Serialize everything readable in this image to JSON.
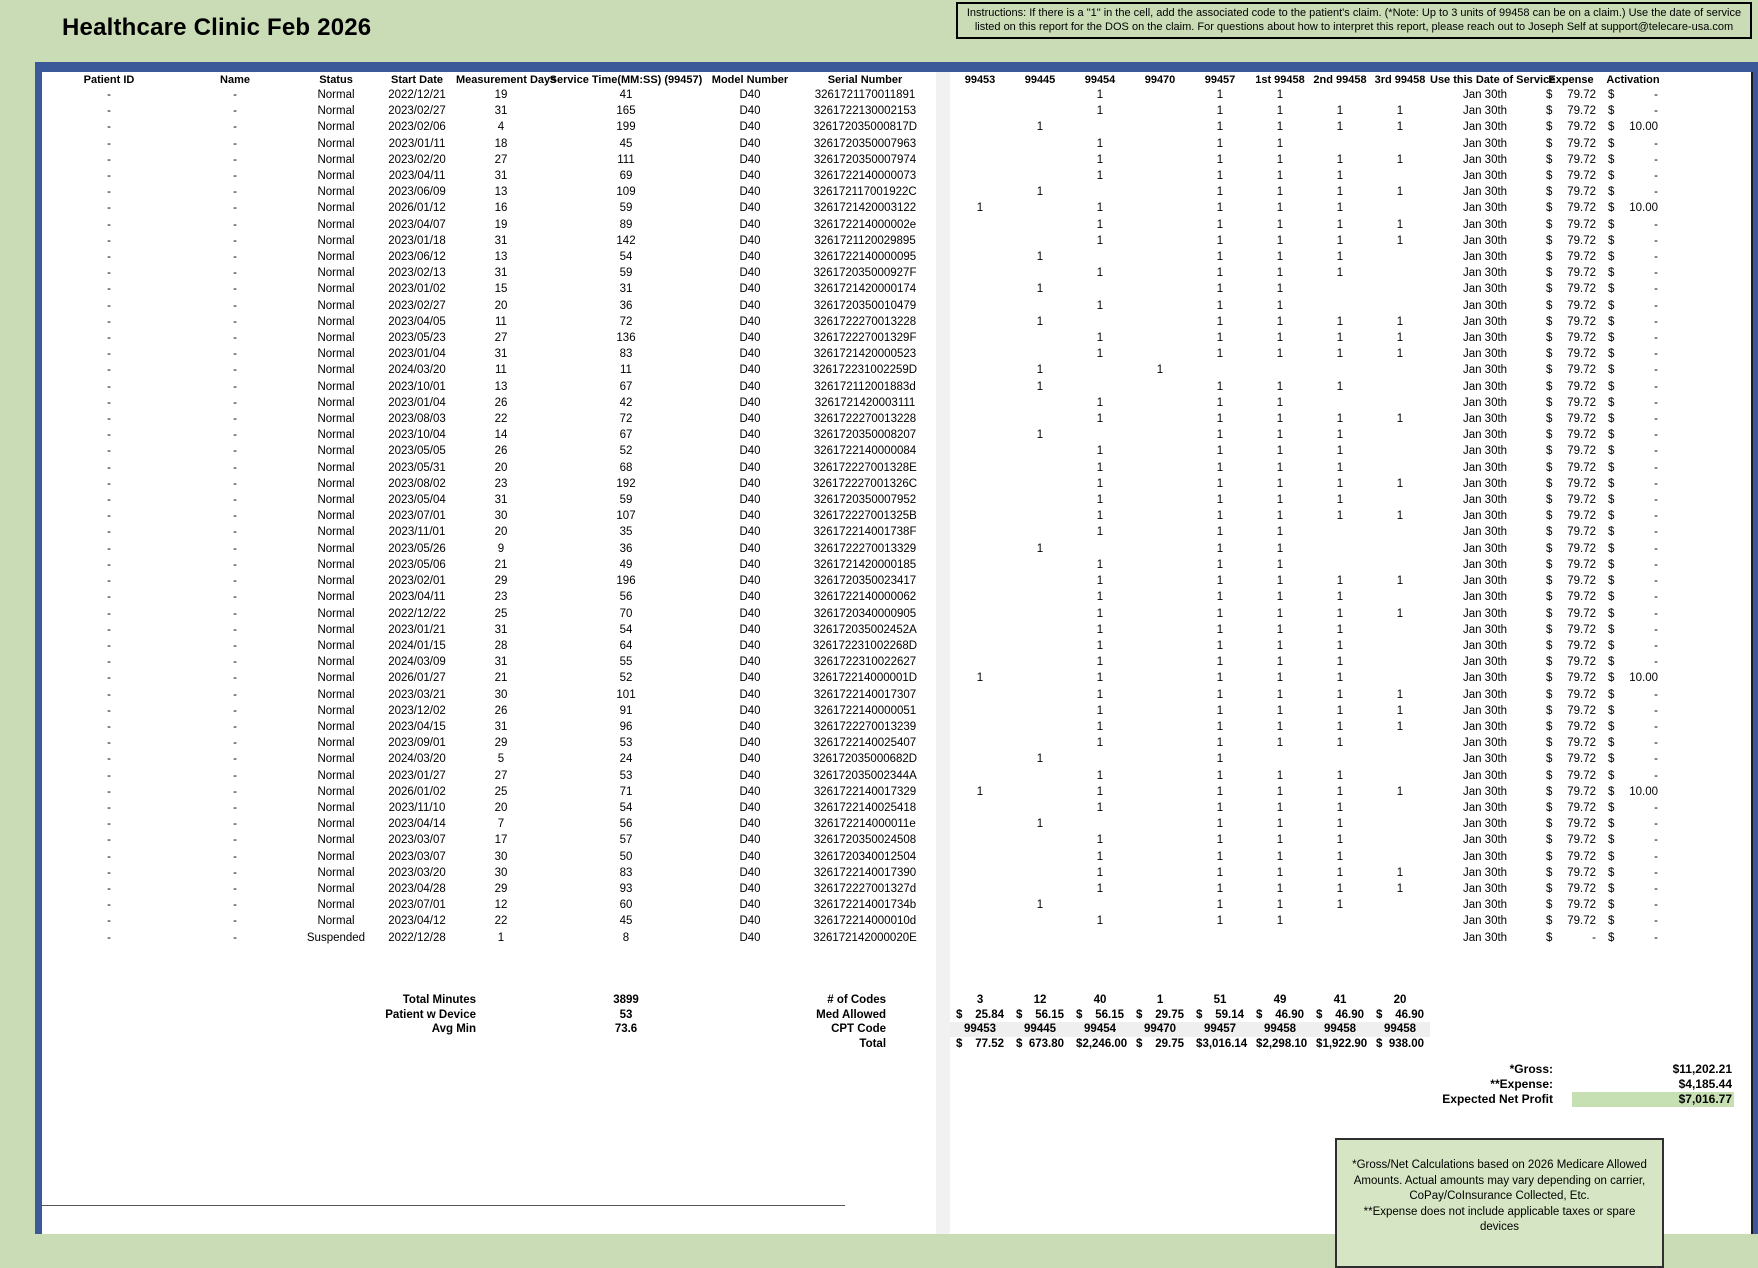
{
  "page": {
    "title": "Healthcare Clinic Feb 2026",
    "instructions": "Instructions: If there is a \"1\" in the cell, add the associated code to the patient's claim. (*Note: Up to 3 units of 99458 can be on a claim.) Use the date of service listed on this report for the DOS on the claim. For questions about how to interpret this report, please reach out to Joseph Self at support@telecare-usa.com"
  },
  "table": {
    "columns": [
      "Patient ID",
      "Name",
      "Status",
      "Start Date",
      "Measurement Days",
      "Service Time(MM:SS) (99457)",
      "Model Number",
      "Serial Number",
      "99453",
      "99445",
      "99454",
      "99470",
      "99457",
      "1st 99458",
      "2nd 99458",
      "3rd 99458",
      "Use this Date of Service",
      "Expense",
      "Activation"
    ],
    "rows": [
      [
        "-",
        "-",
        "Normal",
        "2022/12/21",
        "19",
        "41",
        "D40",
        "3261721170011891",
        "",
        "",
        "1",
        "",
        "1",
        "1",
        "",
        "",
        "Jan 30th",
        "79.72",
        "-"
      ],
      [
        "-",
        "-",
        "Normal",
        "2023/02/27",
        "31",
        "165",
        "D40",
        "3261722130002153",
        "",
        "",
        "1",
        "",
        "1",
        "1",
        "1",
        "1",
        "Jan 30th",
        "79.72",
        "-"
      ],
      [
        "-",
        "-",
        "Normal",
        "2023/02/06",
        "4",
        "199",
        "D40",
        "326172035000817D",
        "",
        "1",
        "",
        "",
        "1",
        "1",
        "1",
        "1",
        "Jan 30th",
        "79.72",
        "10.00"
      ],
      [
        "-",
        "-",
        "Normal",
        "2023/01/11",
        "18",
        "45",
        "D40",
        "3261720350007963",
        "",
        "",
        "1",
        "",
        "1",
        "1",
        "",
        "",
        "Jan 30th",
        "79.72",
        "-"
      ],
      [
        "-",
        "-",
        "Normal",
        "2023/02/20",
        "27",
        "111",
        "D40",
        "3261720350007974",
        "",
        "",
        "1",
        "",
        "1",
        "1",
        "1",
        "1",
        "Jan 30th",
        "79.72",
        "-"
      ],
      [
        "-",
        "-",
        "Normal",
        "2023/04/11",
        "31",
        "69",
        "D40",
        "3261722140000073",
        "",
        "",
        "1",
        "",
        "1",
        "1",
        "1",
        "",
        "Jan 30th",
        "79.72",
        "-"
      ],
      [
        "-",
        "-",
        "Normal",
        "2023/06/09",
        "13",
        "109",
        "D40",
        "326172117001922C",
        "",
        "1",
        "",
        "",
        "1",
        "1",
        "1",
        "1",
        "Jan 30th",
        "79.72",
        "-"
      ],
      [
        "-",
        "-",
        "Normal",
        "2026/01/12",
        "16",
        "59",
        "D40",
        "3261721420003122",
        "1",
        "",
        "1",
        "",
        "1",
        "1",
        "1",
        "",
        "Jan 30th",
        "79.72",
        "10.00"
      ],
      [
        "-",
        "-",
        "Normal",
        "2023/04/07",
        "19",
        "89",
        "D40",
        "326172214000002e",
        "",
        "",
        "1",
        "",
        "1",
        "1",
        "1",
        "1",
        "Jan 30th",
        "79.72",
        "-"
      ],
      [
        "-",
        "-",
        "Normal",
        "2023/01/18",
        "31",
        "142",
        "D40",
        "3261721120029895",
        "",
        "",
        "1",
        "",
        "1",
        "1",
        "1",
        "1",
        "Jan 30th",
        "79.72",
        "-"
      ],
      [
        "-",
        "-",
        "Normal",
        "2023/06/12",
        "13",
        "54",
        "D40",
        "3261722140000095",
        "",
        "1",
        "",
        "",
        "1",
        "1",
        "1",
        "",
        "Jan 30th",
        "79.72",
        "-"
      ],
      [
        "-",
        "-",
        "Normal",
        "2023/02/13",
        "31",
        "59",
        "D40",
        "326172035000927F",
        "",
        "",
        "1",
        "",
        "1",
        "1",
        "1",
        "",
        "Jan 30th",
        "79.72",
        "-"
      ],
      [
        "-",
        "-",
        "Normal",
        "2023/01/02",
        "15",
        "31",
        "D40",
        "3261721420000174",
        "",
        "1",
        "",
        "",
        "1",
        "1",
        "",
        "",
        "Jan 30th",
        "79.72",
        "-"
      ],
      [
        "-",
        "-",
        "Normal",
        "2023/02/27",
        "20",
        "36",
        "D40",
        "3261720350010479",
        "",
        "",
        "1",
        "",
        "1",
        "1",
        "",
        "",
        "Jan 30th",
        "79.72",
        "-"
      ],
      [
        "-",
        "-",
        "Normal",
        "2023/04/05",
        "11",
        "72",
        "D40",
        "3261722270013228",
        "",
        "1",
        "",
        "",
        "1",
        "1",
        "1",
        "1",
        "Jan 30th",
        "79.72",
        "-"
      ],
      [
        "-",
        "-",
        "Normal",
        "2023/05/23",
        "27",
        "136",
        "D40",
        "326172227001329F",
        "",
        "",
        "1",
        "",
        "1",
        "1",
        "1",
        "1",
        "Jan 30th",
        "79.72",
        "-"
      ],
      [
        "-",
        "-",
        "Normal",
        "2023/01/04",
        "31",
        "83",
        "D40",
        "3261721420000523",
        "",
        "",
        "1",
        "",
        "1",
        "1",
        "1",
        "1",
        "Jan 30th",
        "79.72",
        "-"
      ],
      [
        "-",
        "-",
        "Normal",
        "2024/03/20",
        "11",
        "11",
        "D40",
        "326172231002259D",
        "",
        "1",
        "",
        "1",
        "",
        "",
        "",
        "",
        "Jan 30th",
        "79.72",
        "-"
      ],
      [
        "-",
        "-",
        "Normal",
        "2023/10/01",
        "13",
        "67",
        "D40",
        "326172112001883d",
        "",
        "1",
        "",
        "",
        "1",
        "1",
        "1",
        "",
        "Jan 30th",
        "79.72",
        "-"
      ],
      [
        "-",
        "-",
        "Normal",
        "2023/01/04",
        "26",
        "42",
        "D40",
        "3261721420003111",
        "",
        "",
        "1",
        "",
        "1",
        "1",
        "",
        "",
        "Jan 30th",
        "79.72",
        "-"
      ],
      [
        "-",
        "-",
        "Normal",
        "2023/08/03",
        "22",
        "72",
        "D40",
        "3261722270013228",
        "",
        "",
        "1",
        "",
        "1",
        "1",
        "1",
        "1",
        "Jan 30th",
        "79.72",
        "-"
      ],
      [
        "-",
        "-",
        "Normal",
        "2023/10/04",
        "14",
        "67",
        "D40",
        "3261720350008207",
        "",
        "1",
        "",
        "",
        "1",
        "1",
        "1",
        "",
        "Jan 30th",
        "79.72",
        "-"
      ],
      [
        "-",
        "-",
        "Normal",
        "2023/05/05",
        "26",
        "52",
        "D40",
        "3261722140000084",
        "",
        "",
        "1",
        "",
        "1",
        "1",
        "1",
        "",
        "Jan 30th",
        "79.72",
        "-"
      ],
      [
        "-",
        "-",
        "Normal",
        "2023/05/31",
        "20",
        "68",
        "D40",
        "326172227001328E",
        "",
        "",
        "1",
        "",
        "1",
        "1",
        "1",
        "",
        "Jan 30th",
        "79.72",
        "-"
      ],
      [
        "-",
        "-",
        "Normal",
        "2023/08/02",
        "23",
        "192",
        "D40",
        "326172227001326C",
        "",
        "",
        "1",
        "",
        "1",
        "1",
        "1",
        "1",
        "Jan 30th",
        "79.72",
        "-"
      ],
      [
        "-",
        "-",
        "Normal",
        "2023/05/04",
        "31",
        "59",
        "D40",
        "3261720350007952",
        "",
        "",
        "1",
        "",
        "1",
        "1",
        "1",
        "",
        "Jan 30th",
        "79.72",
        "-"
      ],
      [
        "-",
        "-",
        "Normal",
        "2023/07/01",
        "30",
        "107",
        "D40",
        "326172227001325B",
        "",
        "",
        "1",
        "",
        "1",
        "1",
        "1",
        "1",
        "Jan 30th",
        "79.72",
        "-"
      ],
      [
        "-",
        "-",
        "Normal",
        "2023/11/01",
        "20",
        "35",
        "D40",
        "326172214001738F",
        "",
        "",
        "1",
        "",
        "1",
        "1",
        "",
        "",
        "Jan 30th",
        "79.72",
        "-"
      ],
      [
        "-",
        "-",
        "Normal",
        "2023/05/26",
        "9",
        "36",
        "D40",
        "3261722270013329",
        "",
        "1",
        "",
        "",
        "1",
        "1",
        "",
        "",
        "Jan 30th",
        "79.72",
        "-"
      ],
      [
        "-",
        "-",
        "Normal",
        "2023/05/06",
        "21",
        "49",
        "D40",
        "3261721420000185",
        "",
        "",
        "1",
        "",
        "1",
        "1",
        "",
        "",
        "Jan 30th",
        "79.72",
        "-"
      ],
      [
        "-",
        "-",
        "Normal",
        "2023/02/01",
        "29",
        "196",
        "D40",
        "3261720350023417",
        "",
        "",
        "1",
        "",
        "1",
        "1",
        "1",
        "1",
        "Jan 30th",
        "79.72",
        "-"
      ],
      [
        "-",
        "-",
        "Normal",
        "2023/04/11",
        "23",
        "56",
        "D40",
        "3261722140000062",
        "",
        "",
        "1",
        "",
        "1",
        "1",
        "1",
        "",
        "Jan 30th",
        "79.72",
        "-"
      ],
      [
        "-",
        "-",
        "Normal",
        "2022/12/22",
        "25",
        "70",
        "D40",
        "3261720340000905",
        "",
        "",
        "1",
        "",
        "1",
        "1",
        "1",
        "1",
        "Jan 30th",
        "79.72",
        "-"
      ],
      [
        "-",
        "-",
        "Normal",
        "2023/01/21",
        "31",
        "54",
        "D40",
        "326172035002452A",
        "",
        "",
        "1",
        "",
        "1",
        "1",
        "1",
        "",
        "Jan 30th",
        "79.72",
        "-"
      ],
      [
        "-",
        "-",
        "Normal",
        "2024/01/15",
        "28",
        "64",
        "D40",
        "326172231002268D",
        "",
        "",
        "1",
        "",
        "1",
        "1",
        "1",
        "",
        "Jan 30th",
        "79.72",
        "-"
      ],
      [
        "-",
        "-",
        "Normal",
        "2024/03/09",
        "31",
        "55",
        "D40",
        "3261722310022627",
        "",
        "",
        "1",
        "",
        "1",
        "1",
        "1",
        "",
        "Jan 30th",
        "79.72",
        "-"
      ],
      [
        "-",
        "-",
        "Normal",
        "2026/01/27",
        "21",
        "52",
        "D40",
        "326172214000001D",
        "1",
        "",
        "1",
        "",
        "1",
        "1",
        "1",
        "",
        "Jan 30th",
        "79.72",
        "10.00"
      ],
      [
        "-",
        "-",
        "Normal",
        "2023/03/21",
        "30",
        "101",
        "D40",
        "3261722140017307",
        "",
        "",
        "1",
        "",
        "1",
        "1",
        "1",
        "1",
        "Jan 30th",
        "79.72",
        "-"
      ],
      [
        "-",
        "-",
        "Normal",
        "2023/12/02",
        "26",
        "91",
        "D40",
        "3261722140000051",
        "",
        "",
        "1",
        "",
        "1",
        "1",
        "1",
        "1",
        "Jan 30th",
        "79.72",
        "-"
      ],
      [
        "-",
        "-",
        "Normal",
        "2023/04/15",
        "31",
        "96",
        "D40",
        "3261722270013239",
        "",
        "",
        "1",
        "",
        "1",
        "1",
        "1",
        "1",
        "Jan 30th",
        "79.72",
        "-"
      ],
      [
        "-",
        "-",
        "Normal",
        "2023/09/01",
        "29",
        "53",
        "D40",
        "3261722140025407",
        "",
        "",
        "1",
        "",
        "1",
        "1",
        "1",
        "",
        "Jan 30th",
        "79.72",
        "-"
      ],
      [
        "-",
        "-",
        "Normal",
        "2024/03/20",
        "5",
        "24",
        "D40",
        "326172035000682D",
        "",
        "1",
        "",
        "",
        "1",
        "",
        "",
        "",
        "Jan 30th",
        "79.72",
        "-"
      ],
      [
        "-",
        "-",
        "Normal",
        "2023/01/27",
        "27",
        "53",
        "D40",
        "326172035002344A",
        "",
        "",
        "1",
        "",
        "1",
        "1",
        "1",
        "",
        "Jan 30th",
        "79.72",
        "-"
      ],
      [
        "-",
        "-",
        "Normal",
        "2026/01/02",
        "25",
        "71",
        "D40",
        "3261722140017329",
        "1",
        "",
        "1",
        "",
        "1",
        "1",
        "1",
        "1",
        "Jan 30th",
        "79.72",
        "10.00"
      ],
      [
        "-",
        "-",
        "Normal",
        "2023/11/10",
        "20",
        "54",
        "D40",
        "3261722140025418",
        "",
        "",
        "1",
        "",
        "1",
        "1",
        "1",
        "",
        "Jan 30th",
        "79.72",
        "-"
      ],
      [
        "-",
        "-",
        "Normal",
        "2023/04/14",
        "7",
        "56",
        "D40",
        "326172214000011e",
        "",
        "1",
        "",
        "",
        "1",
        "1",
        "1",
        "",
        "Jan 30th",
        "79.72",
        "-"
      ],
      [
        "-",
        "-",
        "Normal",
        "2023/03/07",
        "17",
        "57",
        "D40",
        "3261720350024508",
        "",
        "",
        "1",
        "",
        "1",
        "1",
        "1",
        "",
        "Jan 30th",
        "79.72",
        "-"
      ],
      [
        "-",
        "-",
        "Normal",
        "2023/03/07",
        "30",
        "50",
        "D40",
        "3261720340012504",
        "",
        "",
        "1",
        "",
        "1",
        "1",
        "1",
        "",
        "Jan 30th",
        "79.72",
        "-"
      ],
      [
        "-",
        "-",
        "Normal",
        "2023/03/20",
        "30",
        "83",
        "D40",
        "3261722140017390",
        "",
        "",
        "1",
        "",
        "1",
        "1",
        "1",
        "1",
        "Jan 30th",
        "79.72",
        "-"
      ],
      [
        "-",
        "-",
        "Normal",
        "2023/04/28",
        "29",
        "93",
        "D40",
        "326172227001327d",
        "",
        "",
        "1",
        "",
        "1",
        "1",
        "1",
        "1",
        "Jan 30th",
        "79.72",
        "-"
      ],
      [
        "-",
        "-",
        "Normal",
        "2023/07/01",
        "12",
        "60",
        "D40",
        "326172214001734b",
        "",
        "1",
        "",
        "",
        "1",
        "1",
        "1",
        "",
        "Jan 30th",
        "79.72",
        "-"
      ],
      [
        "-",
        "-",
        "Normal",
        "2023/04/12",
        "22",
        "45",
        "D40",
        "326172214000010d",
        "",
        "",
        "1",
        "",
        "1",
        "1",
        "",
        "",
        "Jan 30th",
        "79.72",
        "-"
      ],
      [
        "-",
        "-",
        "Suspended",
        "2022/12/28",
        "1",
        "8",
        "D40",
        "326172142000020E",
        "",
        "",
        "",
        "",
        "",
        "",
        "",
        "",
        "Jan 30th",
        "-",
        "-"
      ]
    ]
  },
  "summary": {
    "total_minutes_label": "Total Minutes",
    "total_minutes": "3899",
    "patient_w_device_label": "Patient w Device",
    "patient_w_device": "53",
    "avg_min_label": "Avg Min",
    "avg_min": "73.6",
    "num_codes_label": "# of Codes",
    "med_allowed_label": "Med Allowed",
    "cpt_code_label": "CPT Code",
    "total_label": "Total",
    "num_codes": [
      "3",
      "12",
      "40",
      "1",
      "51",
      "49",
      "41",
      "20"
    ],
    "med_allowed": [
      "25.84",
      "56.15",
      "56.15",
      "29.75",
      "59.14",
      "46.90",
      "46.90",
      "46.90"
    ],
    "cpt_codes": [
      "99453",
      "99445",
      "99454",
      "99470",
      "99457",
      "99458",
      "99458",
      "99458"
    ],
    "totals": [
      "77.52",
      "673.80",
      "2,246.00",
      "29.75",
      "3,016.14",
      "2,298.10",
      "1,922.90",
      "938.00"
    ]
  },
  "financials": {
    "gross_label": "*Gross:",
    "gross": "$11,202.21",
    "expense_label": "**Expense:",
    "expense": "$4,185.44",
    "net_label": "Expected Net Profit",
    "net": "$7,016.77"
  },
  "footnote": "*Gross/Net Calculations based on 2026 Medicare Allowed Amounts. Actual amounts may vary depending on carrier, CoPay/CoInsurance Collected, Etc.\n**Expense does not include applicable taxes or spare devices",
  "colors": {
    "page_bg": "#c9dcb5",
    "frame_blue": "#3b5898",
    "highlight_green": "#c6e0b4",
    "strip_gray": "#f1f1f1",
    "cpt_band_gray": "#efefef"
  }
}
